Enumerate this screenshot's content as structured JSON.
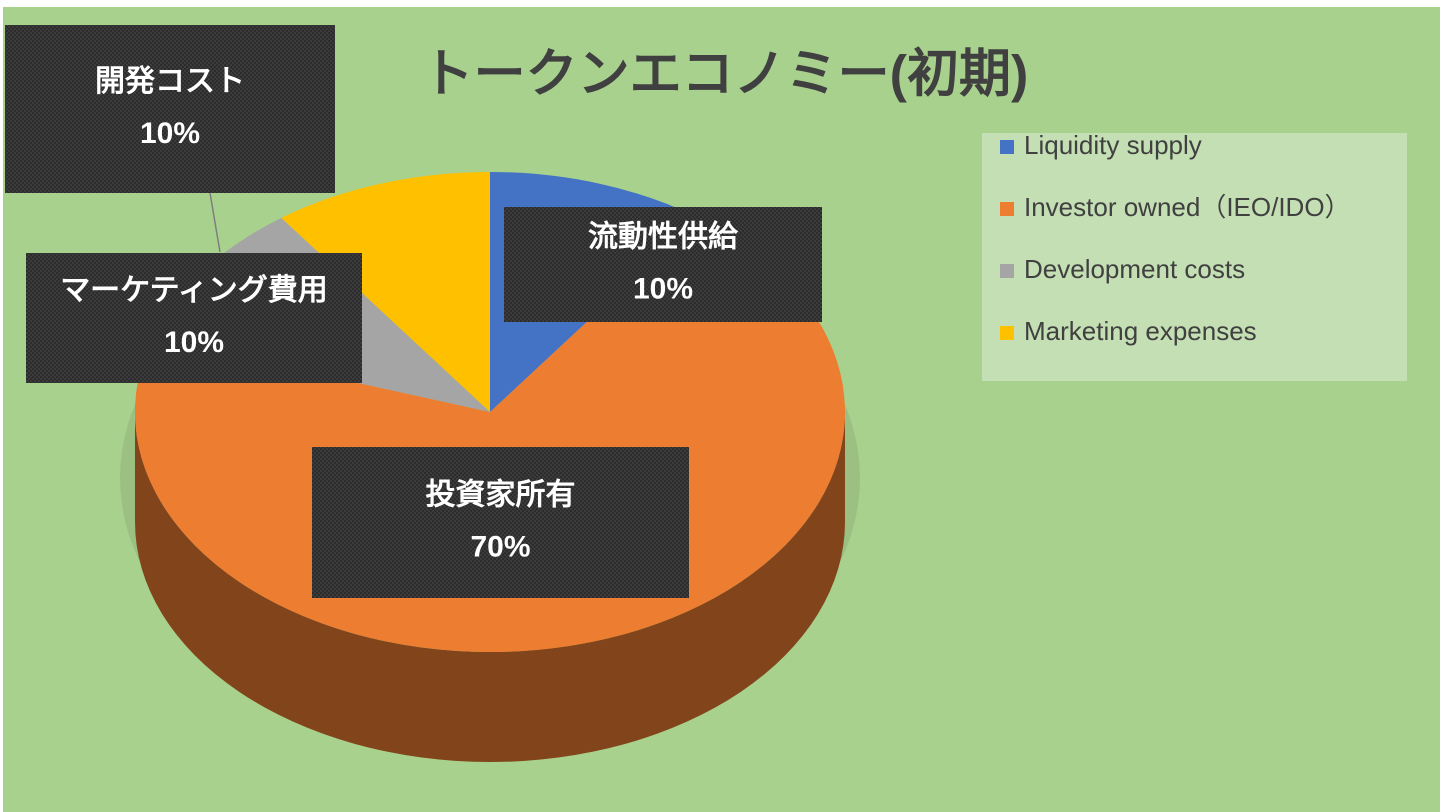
{
  "chart_data": {
    "type": "pie",
    "title": "トークンエコノミー(初期)",
    "categories": [
      "Liquidity supply",
      "Investor owned（IEO/IDO）",
      "Development costs",
      "Marketing expenses"
    ],
    "data_labels": [
      "流動性供給",
      "投資家所有",
      "開発コスト",
      "マーケティング費用"
    ],
    "values": [
      10,
      70,
      10,
      10
    ],
    "value_labels": [
      "10%",
      "70%",
      "10%",
      "10%"
    ],
    "colors": [
      "#4472c4",
      "#ed7d31",
      "#a5a5a5",
      "#ffc000"
    ],
    "legend": "right"
  }
}
